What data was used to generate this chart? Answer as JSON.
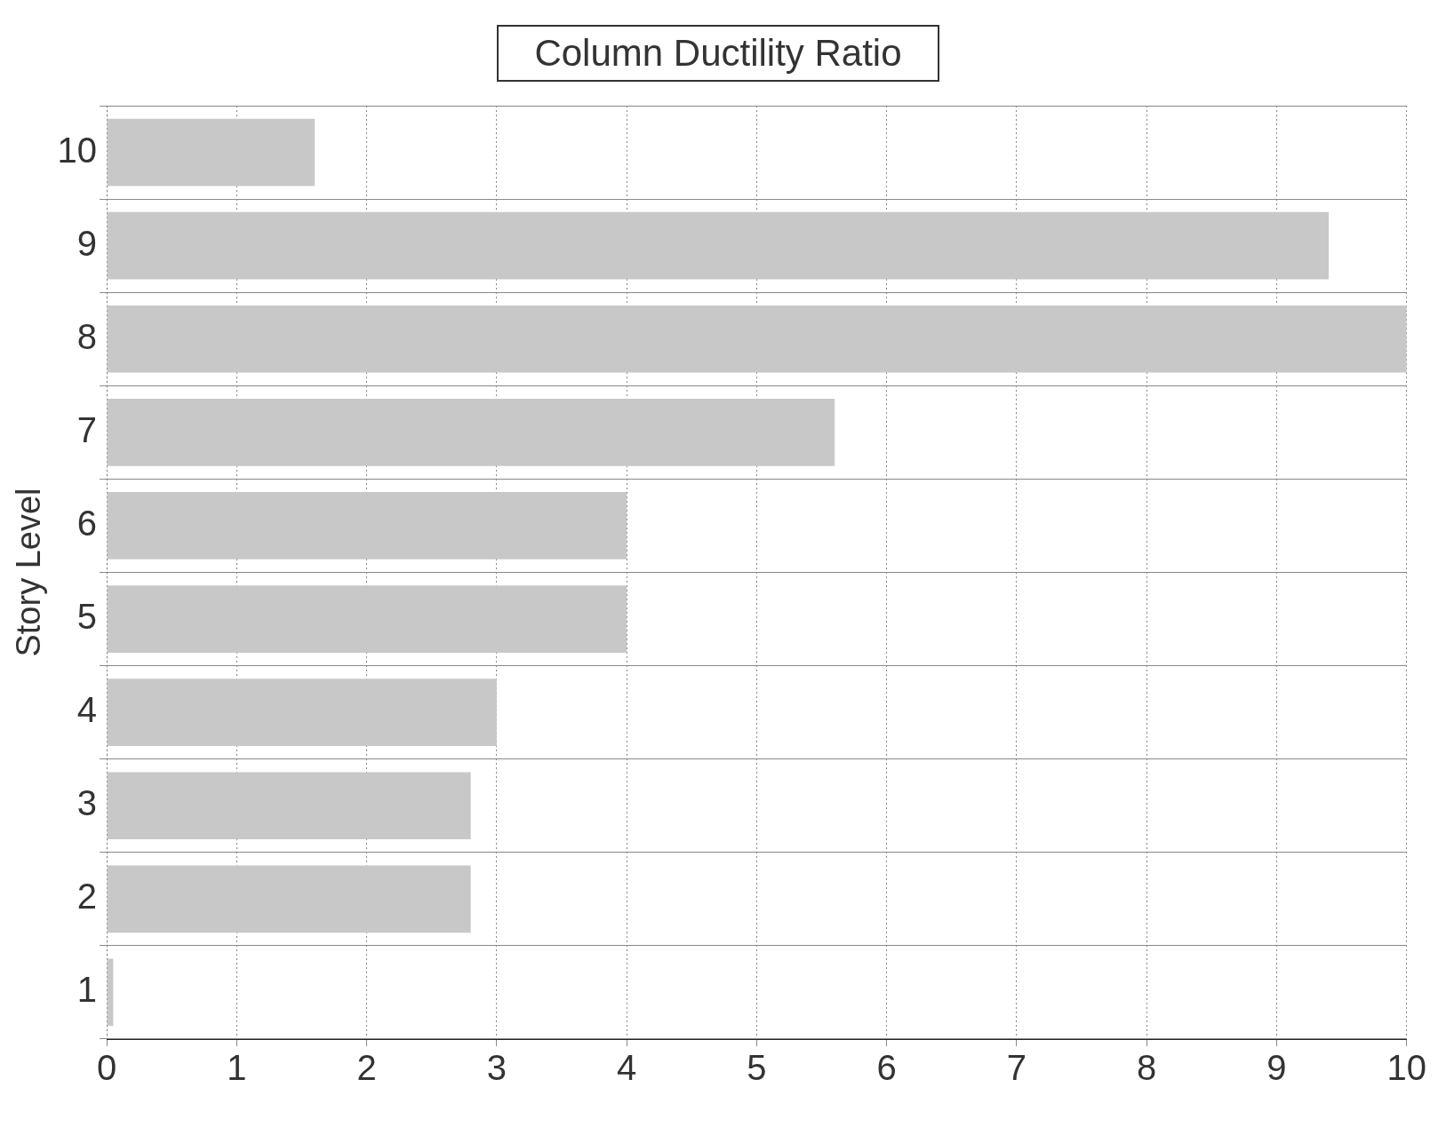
{
  "chart_data": {
    "type": "bar",
    "orientation": "horizontal",
    "title": "Column Ductility Ratio",
    "ylabel": "Story Level",
    "categories": [
      "10",
      "9",
      "8",
      "7",
      "6",
      "5",
      "4",
      "3",
      "2",
      "1"
    ],
    "values": [
      1.6,
      9.4,
      10,
      5.6,
      4.0,
      4.0,
      3.0,
      2.8,
      2.8,
      0.05
    ],
    "color": "#c8c8c8",
    "xlim": [
      0,
      10
    ],
    "xticks": [
      0,
      1,
      2,
      3,
      4,
      5,
      6,
      7,
      8,
      9,
      10
    ],
    "grid": true,
    "legend": false
  }
}
